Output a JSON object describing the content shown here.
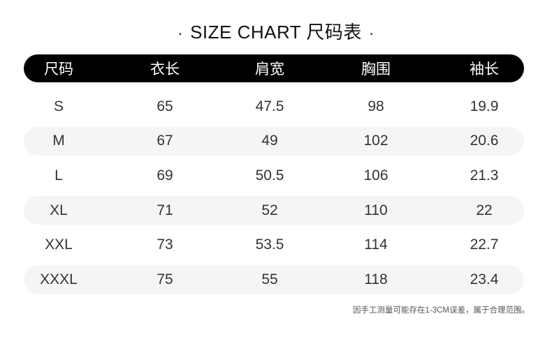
{
  "title": {
    "dot_left": "·",
    "text": "SIZE CHART 尺码表",
    "dot_right": "·"
  },
  "table": {
    "headers": [
      "尺码",
      "衣长",
      "肩宽",
      "胸围",
      "袖长"
    ],
    "rows": [
      [
        "S",
        "65",
        "47.5",
        "98",
        "19.9"
      ],
      [
        "M",
        "67",
        "49",
        "102",
        "20.6"
      ],
      [
        "L",
        "69",
        "50.5",
        "106",
        "21.3"
      ],
      [
        "XL",
        "71",
        "52",
        "110",
        "22"
      ],
      [
        "XXL",
        "73",
        "53.5",
        "114",
        "22.7"
      ],
      [
        "XXXL",
        "75",
        "55",
        "118",
        "23.4"
      ]
    ]
  },
  "note": "因手工测量可能存在1-3CM误差，属于合理范围。",
  "colors": {
    "header_bg": "#000000",
    "stripe_bg": "#f5f5f5"
  }
}
